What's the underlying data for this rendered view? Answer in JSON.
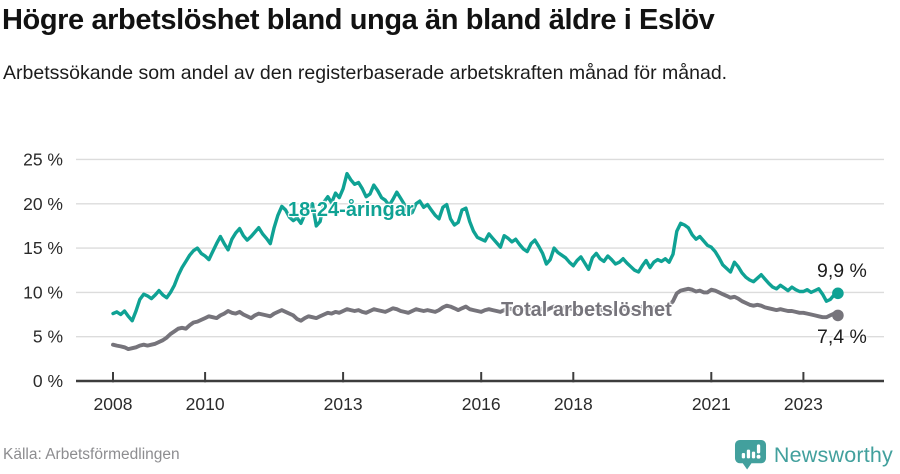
{
  "chart_data": {
    "type": "line",
    "title": "Högre arbetslöshet bland unga än bland äldre i Eslöv",
    "subtitle": "Arbetssökande som andel av den registerbaserade arbetskraften månad för månad.",
    "source": "Källa: Arbetsförmedlingen",
    "x_unit": "month",
    "x_start": "2008-01",
    "x_end": "2023-10",
    "x_tick_years": [
      2008,
      2010,
      2013,
      2016,
      2018,
      2021,
      2023
    ],
    "x_tick_labels": [
      "2008",
      "2010",
      "2013",
      "2016",
      "2018",
      "2021",
      "2023"
    ],
    "y_ticks": [
      0,
      5,
      10,
      15,
      20,
      25
    ],
    "y_tick_labels": [
      "0 %",
      "5 %",
      "10 %",
      "15 %",
      "20 %",
      "25 %"
    ],
    "ylim": [
      0,
      26
    ],
    "grid": "horizontal",
    "legend_position": "inline-labels",
    "series": [
      {
        "name": "18-24-åringar",
        "color": "#0fa294",
        "end_label": "9,9 %",
        "end_value": 9.9,
        "values": [
          7.6,
          7.8,
          7.5,
          7.9,
          7.3,
          6.8,
          7.9,
          9.2,
          9.8,
          9.6,
          9.3,
          9.7,
          10.2,
          9.7,
          9.4,
          10.0,
          10.8,
          11.9,
          12.8,
          13.5,
          14.2,
          14.7,
          15.0,
          14.4,
          14.1,
          13.7,
          14.6,
          15.5,
          16.3,
          15.5,
          14.8,
          16.0,
          16.7,
          17.2,
          16.4,
          15.9,
          16.3,
          16.8,
          17.3,
          16.6,
          16.1,
          15.5,
          17.3,
          18.7,
          19.7,
          19.3,
          18.5,
          18.1,
          18.4,
          17.8,
          18.8,
          19.5,
          20.0,
          17.5,
          18.0,
          20.2,
          20.8,
          20.1,
          21.2,
          20.7,
          21.7,
          23.4,
          22.7,
          22.2,
          22.4,
          21.7,
          20.8,
          21.1,
          22.1,
          21.5,
          20.7,
          20.4,
          19.8,
          20.5,
          21.3,
          20.6,
          19.9,
          18.8,
          19.0,
          20.0,
          20.3,
          19.6,
          19.9,
          19.3,
          18.7,
          18.3,
          19.6,
          19.9,
          18.3,
          17.6,
          17.9,
          19.3,
          19.5,
          18.0,
          16.9,
          16.2,
          16.0,
          15.8,
          16.6,
          16.1,
          15.6,
          15.1,
          16.4,
          16.1,
          15.7,
          16.0,
          15.4,
          14.9,
          14.6,
          15.5,
          15.9,
          15.2,
          14.4,
          13.2,
          13.7,
          15.0,
          14.5,
          14.2,
          13.9,
          13.4,
          13.0,
          13.6,
          14.0,
          13.3,
          12.6,
          13.9,
          14.4,
          13.8,
          13.5,
          14.1,
          13.7,
          13.2,
          13.4,
          13.8,
          13.3,
          12.9,
          12.5,
          12.3,
          13.0,
          13.6,
          12.8,
          13.4,
          13.7,
          13.5,
          13.8,
          13.4,
          14.3,
          16.9,
          17.8,
          17.6,
          17.3,
          16.5,
          16.0,
          16.3,
          15.8,
          15.3,
          15.1,
          14.6,
          13.9,
          13.1,
          12.7,
          12.3,
          13.4,
          12.9,
          12.2,
          11.7,
          11.4,
          11.2,
          11.6,
          12.0,
          11.5,
          11.0,
          10.6,
          10.4,
          10.8,
          10.5,
          10.2,
          10.6,
          10.3,
          10.1,
          10.1,
          10.3,
          10.0,
          10.2,
          10.4,
          9.8,
          9.0,
          9.2,
          9.7,
          9.9
        ]
      },
      {
        "name": "Total arbetslöshet",
        "color": "#76747b",
        "end_label": "7,4 %",
        "end_value": 7.4,
        "values": [
          4.1,
          4.0,
          3.9,
          3.8,
          3.6,
          3.7,
          3.8,
          4.0,
          4.1,
          4.0,
          4.1,
          4.2,
          4.4,
          4.6,
          4.9,
          5.3,
          5.6,
          5.9,
          6.0,
          5.9,
          6.3,
          6.6,
          6.7,
          6.9,
          7.1,
          7.3,
          7.2,
          7.1,
          7.4,
          7.6,
          7.9,
          7.7,
          7.6,
          7.8,
          7.5,
          7.3,
          7.1,
          7.4,
          7.6,
          7.5,
          7.4,
          7.3,
          7.6,
          7.8,
          8.0,
          7.8,
          7.6,
          7.4,
          7.0,
          6.8,
          7.1,
          7.3,
          7.2,
          7.1,
          7.3,
          7.5,
          7.7,
          7.6,
          7.8,
          7.7,
          7.9,
          8.1,
          8.0,
          7.9,
          8.0,
          7.8,
          7.7,
          7.9,
          8.1,
          8.0,
          7.9,
          7.8,
          8.0,
          8.2,
          8.1,
          7.9,
          7.8,
          7.7,
          7.9,
          8.1,
          8.0,
          7.9,
          8.0,
          7.9,
          7.8,
          8.0,
          8.3,
          8.5,
          8.4,
          8.2,
          8.0,
          8.2,
          8.4,
          8.1,
          8.0,
          7.9,
          7.8,
          8.0,
          8.1,
          8.0,
          7.9,
          7.8,
          8.0,
          8.2,
          8.1,
          8.3,
          8.2,
          8.1,
          8.1,
          8.2,
          8.3,
          8.2,
          8.1,
          8.0,
          8.2,
          8.4,
          8.3,
          8.2,
          8.3,
          8.2,
          8.1,
          8.3,
          8.2,
          8.0,
          7.8,
          8.0,
          8.2,
          8.1,
          7.9,
          8.1,
          8.0,
          7.9,
          8.0,
          8.2,
          8.1,
          8.0,
          7.9,
          8.1,
          8.4,
          8.3,
          8.2,
          8.3,
          8.2,
          8.3,
          8.4,
          8.5,
          9.0,
          9.9,
          10.2,
          10.3,
          10.4,
          10.3,
          10.1,
          10.2,
          10.0,
          10.0,
          10.3,
          10.2,
          10.0,
          9.8,
          9.6,
          9.4,
          9.5,
          9.3,
          9.0,
          8.8,
          8.6,
          8.5,
          8.6,
          8.5,
          8.3,
          8.2,
          8.1,
          8.0,
          8.1,
          8.0,
          7.9,
          7.9,
          7.8,
          7.7,
          7.7,
          7.6,
          7.5,
          7.4,
          7.3,
          7.2,
          7.2,
          7.4,
          7.6,
          7.4
        ]
      }
    ]
  },
  "footer": {
    "brand": "Newsworthy"
  },
  "colors": {
    "accent_teal": "#0fa294",
    "series_gray": "#76747b",
    "gridline": "#dcdcdc",
    "axis": "#3d3d3d",
    "tick_text": "#2b2b2b",
    "brand_teal": "#42a09d"
  }
}
